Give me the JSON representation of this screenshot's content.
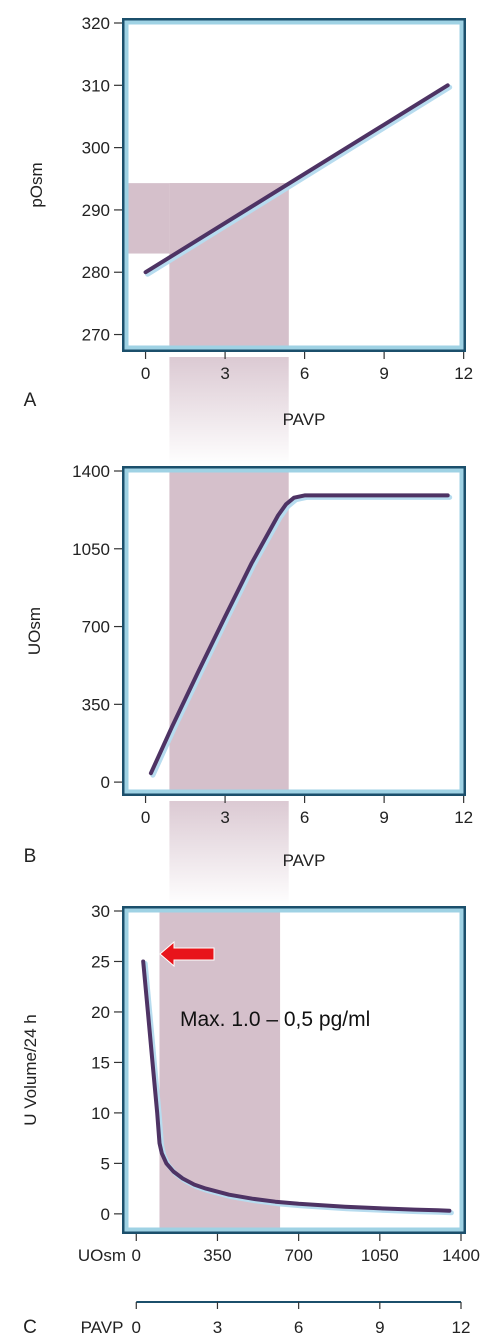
{
  "chart_data": [
    {
      "type": "line",
      "panel_label": "A",
      "xlabel": "PAVP",
      "ylabel": "pOsm",
      "xlim": [
        -0.7,
        11.9
      ],
      "ylim": [
        268,
        320
      ],
      "xticks": [
        0,
        3,
        6,
        9,
        12
      ],
      "yticks": [
        270,
        280,
        290,
        300,
        310,
        320
      ],
      "series": [
        {
          "x": [
            0,
            11.4
          ],
          "y": [
            280,
            310
          ]
        }
      ],
      "shaded_band": {
        "x": [
          0.9,
          5.4
        ]
      },
      "shaded_corner": {
        "x_from": -0.7,
        "y": [
          283,
          294.3
        ]
      }
    },
    {
      "type": "line",
      "panel_label": "B",
      "xlabel": "PAVP",
      "ylabel": "UOsm",
      "xlim": [
        -0.7,
        11.9
      ],
      "ylim": [
        -40,
        1400
      ],
      "xticks": [
        0,
        3,
        6,
        9,
        12
      ],
      "yticks": [
        0,
        350,
        700,
        1050,
        1400
      ],
      "series": [
        {
          "x": [
            0.2,
            1.0,
            2.0,
            3.0,
            4.0,
            5.0,
            5.3,
            5.6,
            6.0,
            7.0,
            9.0,
            11.4
          ],
          "y": [
            40,
            250,
            500,
            745,
            985,
            1200,
            1250,
            1280,
            1290,
            1290,
            1290,
            1290
          ]
        }
      ],
      "shaded_band": {
        "x": [
          0.9,
          5.4
        ]
      }
    },
    {
      "type": "line",
      "panel_label": "C",
      "xlabel": "UOsm",
      "ylabel": "U Volume/24 h",
      "xlim": [
        -40,
        1400
      ],
      "ylim": [
        -1.5,
        30
      ],
      "xticks": [
        0,
        350,
        700,
        1050,
        1400
      ],
      "yticks": [
        0,
        5,
        10,
        15,
        20,
        25,
        30
      ],
      "series": [
        {
          "x": [
            30,
            50,
            70,
            90,
            100,
            110,
            130,
            160,
            200,
            250,
            300,
            400,
            500,
            600,
            700,
            800,
            900,
            1000,
            1100,
            1200,
            1300,
            1350
          ],
          "y": [
            25,
            20,
            15,
            10,
            7,
            6,
            5,
            4.2,
            3.5,
            2.9,
            2.5,
            1.9,
            1.5,
            1.2,
            1.0,
            0.85,
            0.7,
            0.6,
            0.5,
            0.42,
            0.35,
            0.3
          ]
        }
      ],
      "shaded_band": {
        "x": [
          100,
          620
        ]
      },
      "secondary_x_axis": {
        "label": "PAVP",
        "ticks": [
          0,
          3,
          6,
          9,
          12
        ]
      },
      "annotation": {
        "text": "Max. 1.0 – 0,5 pg/ml",
        "arrow_color": "#e8141b"
      }
    }
  ],
  "colors": {
    "frame_outer": "#1b4f6b",
    "frame_inner": "#9fd2e4",
    "shade": "#d5c0cb",
    "curve": "#4e3364",
    "curve_glow": "#b7dcef",
    "arrow": "#e8141b"
  }
}
